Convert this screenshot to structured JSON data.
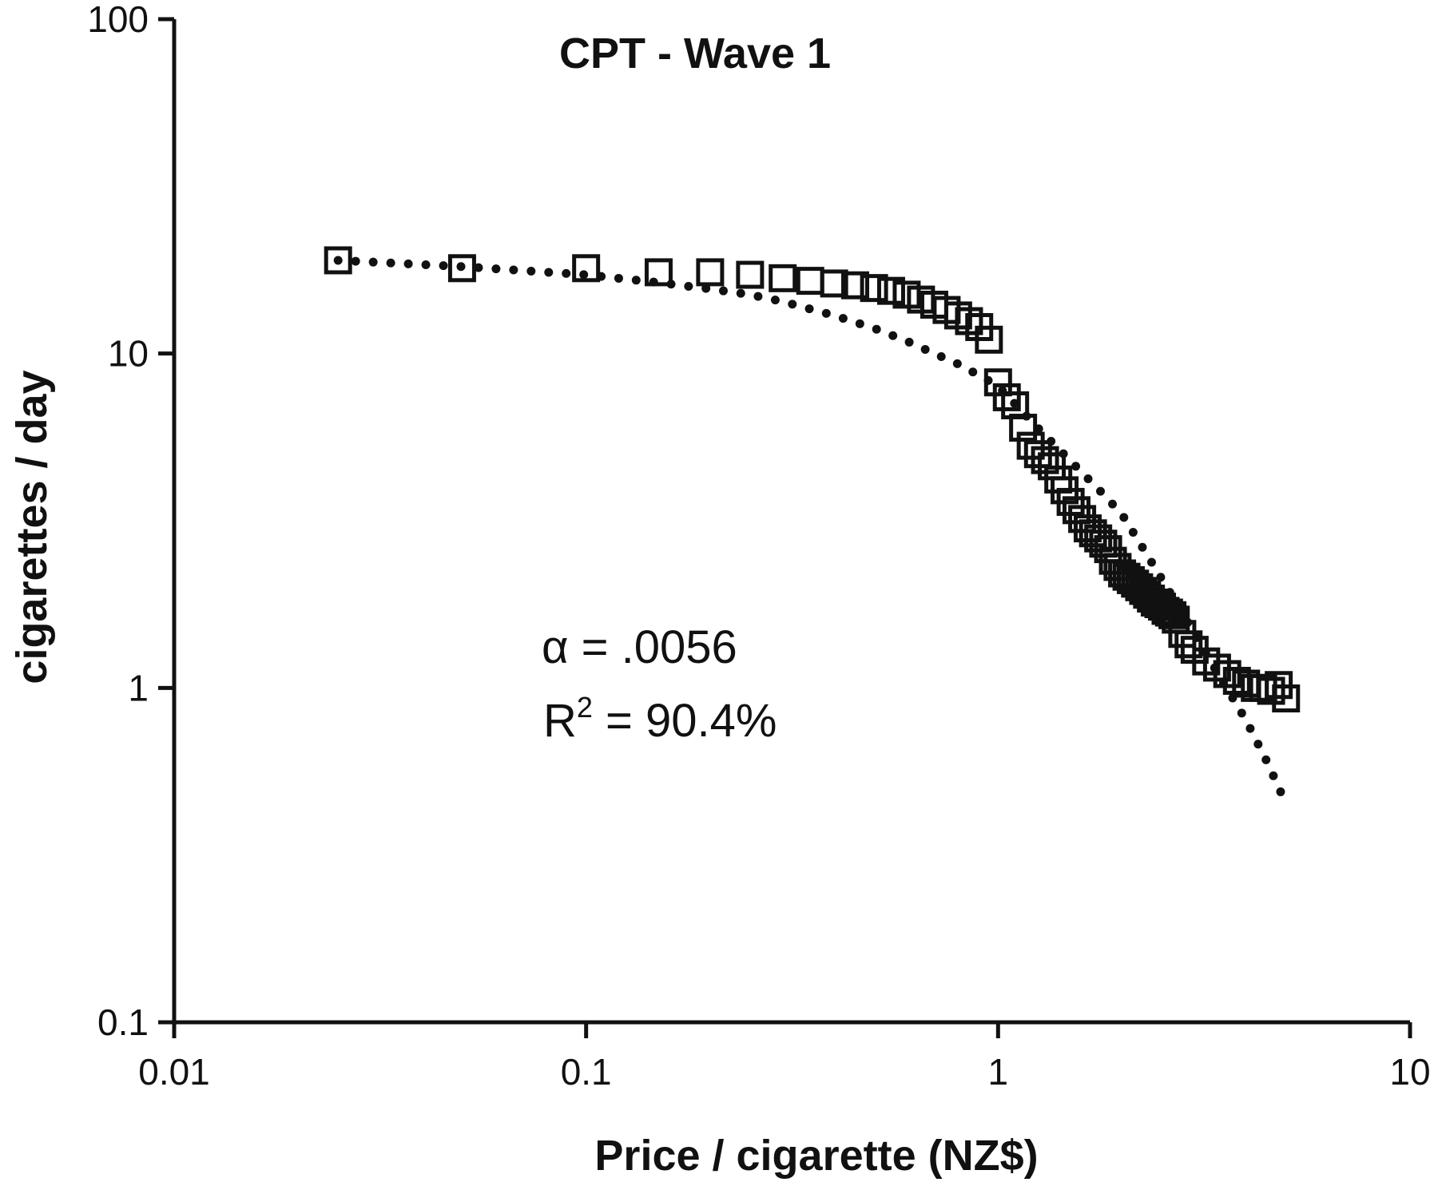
{
  "chart_data": {
    "type": "scatter",
    "title": "CPT - Wave 1",
    "xlabel": "Price / cigarette (NZ$)",
    "ylabel": "cigarettes / day",
    "xscale": "log",
    "yscale": "log",
    "xlim": [
      0.01,
      10
    ],
    "ylim": [
      0.1,
      100
    ],
    "x_ticks": [
      "0.01",
      "0.1",
      "1",
      "10"
    ],
    "x_tick_values": [
      0.01,
      0.1,
      1,
      10
    ],
    "y_ticks": [
      "0.1",
      "1",
      "10",
      "100"
    ],
    "y_tick_values": [
      0.1,
      1,
      10,
      100
    ],
    "grid": false,
    "legend": "none",
    "annotations": {
      "alpha": "α = .0056",
      "r2_prefix": "R",
      "r2_sup": "2",
      "r2_suffix": " = 90.4%"
    },
    "series": [
      {
        "style": "open-square markers",
        "x": [
          0.025,
          0.05,
          0.1,
          0.15,
          0.2,
          0.25,
          0.3,
          0.35,
          0.4,
          0.45,
          0.5,
          0.55,
          0.6,
          0.65,
          0.7,
          0.75,
          0.8,
          0.85,
          0.9,
          0.95,
          1.0,
          1.05,
          1.1,
          1.15,
          1.2,
          1.25,
          1.3,
          1.35,
          1.4,
          1.45,
          1.5,
          1.55,
          1.6,
          1.65,
          1.7,
          1.75,
          1.8,
          1.85,
          1.9,
          1.95,
          2.0,
          2.05,
          2.1,
          2.15,
          2.2,
          2.25,
          2.3,
          2.35,
          2.4,
          2.45,
          2.5,
          2.55,
          2.6,
          2.65,
          2.7,
          2.8,
          2.9,
          3.0,
          3.2,
          3.4,
          3.6,
          3.8,
          4.0,
          4.2,
          4.4,
          4.6,
          4.8,
          5.0
        ],
        "y": [
          19,
          18,
          18,
          17.5,
          17.5,
          17.2,
          16.8,
          16.5,
          16.2,
          16.0,
          15.7,
          15.4,
          15.0,
          14.5,
          14.0,
          13.5,
          13.0,
          12.5,
          12.0,
          11.0,
          8.2,
          7.4,
          7.0,
          6.0,
          5.3,
          5.0,
          4.8,
          4.6,
          4.2,
          3.9,
          3.6,
          3.4,
          3.2,
          3.0,
          2.9,
          2.8,
          2.7,
          2.6,
          2.4,
          2.3,
          2.2,
          2.15,
          2.1,
          2.05,
          2.0,
          1.95,
          1.9,
          1.85,
          1.8,
          1.78,
          1.75,
          1.7,
          1.68,
          1.65,
          1.6,
          1.45,
          1.35,
          1.3,
          1.2,
          1.15,
          1.1,
          1.05,
          1.03,
          1.0,
          1.0,
          0.98,
          1.02,
          0.93
        ]
      },
      {
        "style": "dotted fit curve",
        "x": [
          0.025,
          0.05,
          0.1,
          0.15,
          0.2,
          0.25,
          0.3,
          0.4,
          0.5,
          0.6,
          0.7,
          0.8,
          0.9,
          1.0,
          1.2,
          1.4,
          1.6,
          1.8,
          2.0,
          2.3,
          2.6,
          3.0,
          3.5,
          4.0,
          4.5,
          5.0
        ],
        "y": [
          19,
          18.2,
          17.2,
          16.3,
          15.6,
          15.0,
          14.3,
          13.0,
          11.9,
          10.9,
          10.0,
          9.3,
          8.6,
          8.0,
          6.3,
          5.2,
          4.4,
          3.8,
          3.3,
          2.5,
          1.95,
          1.45,
          1.05,
          0.8,
          0.6,
          0.45
        ]
      }
    ]
  }
}
